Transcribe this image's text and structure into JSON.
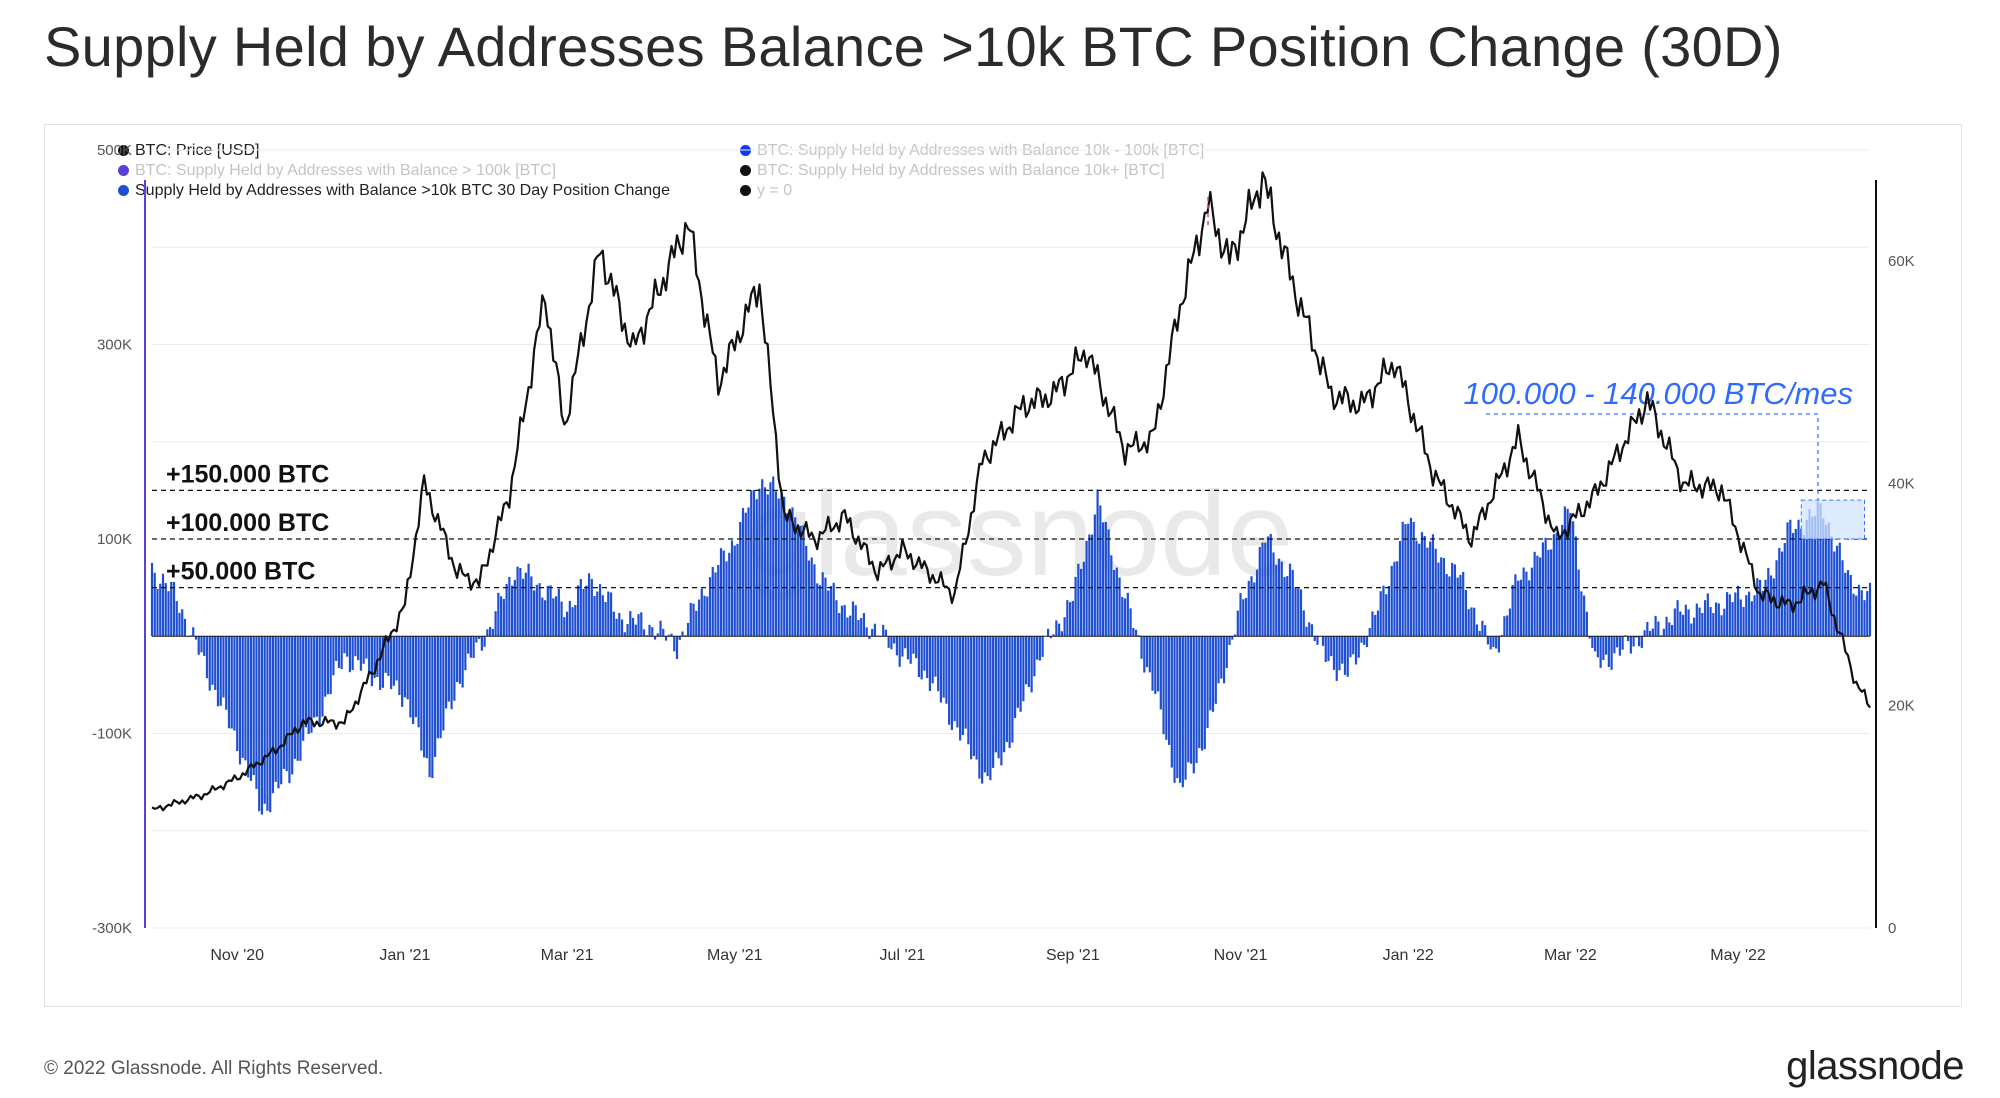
{
  "title": "Supply Held by Addresses Balance >10k BTC Position Change (30D)",
  "footer": {
    "copyright": "© 2022 Glassnode. All Rights Reserved.",
    "logo": "glassnode"
  },
  "watermark": "glassnode",
  "legend": [
    {
      "label": "BTC: Price [USD]",
      "color": "#111111",
      "faded": false
    },
    {
      "label": "BTC: Supply Held by Addresses with Balance > 100k [BTC]",
      "color": "#5b3fd6",
      "faded": true
    },
    {
      "label": "Supply Held by Addresses with Balance >10k BTC 30 Day Position Change",
      "color": "#1f4fd1",
      "faded": false
    },
    {
      "label": "BTC: Supply Held by Addresses with Balance 10k - 100k [BTC]",
      "color": "#1238f0",
      "faded": true
    },
    {
      "label": "BTC: Supply Held by Addresses with Balance 10k+ [BTC]",
      "color": "#111111",
      "faded": true
    },
    {
      "label": "y = 0",
      "color": "#111111",
      "faded": true
    }
  ],
  "chart_data": {
    "type": "bar",
    "y_left": {
      "ticks": [
        "500K",
        "300K",
        "100K",
        "-100K",
        "-300K"
      ],
      "ylim": [
        -300000,
        500000
      ]
    },
    "y_right": {
      "ticks": [
        "60K",
        "40K",
        "20K",
        "0"
      ],
      "ylim": [
        0,
        70000
      ]
    },
    "x_ticks": [
      "Nov '20",
      "Jan '21",
      "Mar '21",
      "May '21",
      "Jul '21",
      "Sep '21",
      "Nov '21",
      "Jan '22",
      "Mar '22",
      "May '22"
    ],
    "x_range": [
      "2020-10-01",
      "2022-06-18"
    ],
    "reference_lines": [
      {
        "label": "+150.000 BTC",
        "value": 150000
      },
      {
        "label": "+100.000 BTC",
        "value": 100000
      },
      {
        "label": "+50.000 BTC",
        "value": 50000
      }
    ],
    "annotation": {
      "text": "100.000 - 140.000 BTC/mes",
      "range": [
        100000,
        140000
      ],
      "x_from": "2022-05-24",
      "x_to": "2022-06-16"
    },
    "series": [
      {
        "name": "Supply Held by Addresses with Balance >10k BTC 30 Day Position Change",
        "color": "#1f4fd1",
        "points": [
          [
            "2020-10-01",
            70000
          ],
          [
            "2020-10-10",
            40000
          ],
          [
            "2020-10-20",
            -30000
          ],
          [
            "2020-11-01",
            -110000
          ],
          [
            "2020-11-10",
            -180000
          ],
          [
            "2020-11-20",
            -140000
          ],
          [
            "2020-12-01",
            -80000
          ],
          [
            "2020-12-10",
            -20000
          ],
          [
            "2020-12-20",
            -40000
          ],
          [
            "2021-01-01",
            -60000
          ],
          [
            "2021-01-10",
            -140000
          ],
          [
            "2021-01-20",
            -50000
          ],
          [
            "2021-02-01",
            10000
          ],
          [
            "2021-02-10",
            70000
          ],
          [
            "2021-02-20",
            50000
          ],
          [
            "2021-03-01",
            30000
          ],
          [
            "2021-03-10",
            60000
          ],
          [
            "2021-03-20",
            20000
          ],
          [
            "2021-04-01",
            10000
          ],
          [
            "2021-04-10",
            -10000
          ],
          [
            "2021-04-20",
            50000
          ],
          [
            "2021-05-01",
            100000
          ],
          [
            "2021-05-10",
            160000
          ],
          [
            "2021-05-20",
            140000
          ],
          [
            "2021-06-01",
            60000
          ],
          [
            "2021-06-10",
            30000
          ],
          [
            "2021-06-20",
            10000
          ],
          [
            "2021-07-01",
            -20000
          ],
          [
            "2021-07-10",
            -40000
          ],
          [
            "2021-07-20",
            -90000
          ],
          [
            "2021-08-01",
            -150000
          ],
          [
            "2021-08-10",
            -100000
          ],
          [
            "2021-08-20",
            -20000
          ],
          [
            "2021-09-01",
            40000
          ],
          [
            "2021-09-10",
            140000
          ],
          [
            "2021-09-20",
            40000
          ],
          [
            "2021-10-01",
            -60000
          ],
          [
            "2021-10-10",
            -160000
          ],
          [
            "2021-10-20",
            -100000
          ],
          [
            "2021-11-01",
            30000
          ],
          [
            "2021-11-10",
            100000
          ],
          [
            "2021-11-20",
            60000
          ],
          [
            "2021-12-01",
            -20000
          ],
          [
            "2021-12-10",
            -40000
          ],
          [
            "2021-12-20",
            20000
          ],
          [
            "2022-01-01",
            120000
          ],
          [
            "2022-01-10",
            90000
          ],
          [
            "2022-01-20",
            60000
          ],
          [
            "2022-02-01",
            -20000
          ],
          [
            "2022-02-10",
            60000
          ],
          [
            "2022-02-20",
            90000
          ],
          [
            "2022-03-01",
            130000
          ],
          [
            "2022-03-10",
            -30000
          ],
          [
            "2022-03-20",
            -15000
          ],
          [
            "2022-04-01",
            10000
          ],
          [
            "2022-04-10",
            25000
          ],
          [
            "2022-04-20",
            30000
          ],
          [
            "2022-05-01",
            40000
          ],
          [
            "2022-05-10",
            50000
          ],
          [
            "2022-05-20",
            110000
          ],
          [
            "2022-06-01",
            130000
          ],
          [
            "2022-06-10",
            60000
          ],
          [
            "2022-06-18",
            40000
          ]
        ]
      },
      {
        "name": "BTC: Price [USD]",
        "color": "#111111",
        "axis": "right",
        "points": [
          [
            "2020-10-01",
            10600
          ],
          [
            "2020-10-20",
            12000
          ],
          [
            "2020-11-01",
            13500
          ],
          [
            "2020-11-15",
            16000
          ],
          [
            "2020-11-25",
            18500
          ],
          [
            "2020-12-10",
            18500
          ],
          [
            "2020-12-20",
            23000
          ],
          [
            "2021-01-01",
            29000
          ],
          [
            "2021-01-08",
            40000
          ],
          [
            "2021-01-20",
            32000
          ],
          [
            "2021-01-28",
            31000
          ],
          [
            "2021-02-08",
            39000
          ],
          [
            "2021-02-21",
            57000
          ],
          [
            "2021-02-28",
            45000
          ],
          [
            "2021-03-13",
            61000
          ],
          [
            "2021-03-25",
            52000
          ],
          [
            "2021-04-14",
            63500
          ],
          [
            "2021-04-25",
            49000
          ],
          [
            "2021-05-10",
            58000
          ],
          [
            "2021-05-19",
            37000
          ],
          [
            "2021-05-30",
            35000
          ],
          [
            "2021-06-10",
            37000
          ],
          [
            "2021-06-22",
            32000
          ],
          [
            "2021-07-01",
            34000
          ],
          [
            "2021-07-20",
            30000
          ],
          [
            "2021-07-30",
            42000
          ],
          [
            "2021-08-14",
            47000
          ],
          [
            "2021-08-25",
            48000
          ],
          [
            "2021-09-06",
            52000
          ],
          [
            "2021-09-20",
            43000
          ],
          [
            "2021-09-30",
            44000
          ],
          [
            "2021-10-10",
            56000
          ],
          [
            "2021-10-20",
            65000
          ],
          [
            "2021-10-28",
            60000
          ],
          [
            "2021-11-09",
            67500
          ],
          [
            "2021-11-20",
            58000
          ],
          [
            "2021-12-04",
            48000
          ],
          [
            "2021-12-15",
            47000
          ],
          [
            "2021-12-27",
            51000
          ],
          [
            "2022-01-10",
            41000
          ],
          [
            "2022-01-24",
            35000
          ],
          [
            "2022-02-10",
            44000
          ],
          [
            "2022-02-24",
            35000
          ],
          [
            "2022-03-10",
            39000
          ],
          [
            "2022-03-29",
            47500
          ],
          [
            "2022-04-11",
            40000
          ],
          [
            "2022-04-25",
            39500
          ],
          [
            "2022-05-09",
            30000
          ],
          [
            "2022-05-20",
            29000
          ],
          [
            "2022-06-01",
            31000
          ],
          [
            "2022-06-13",
            22000
          ],
          [
            "2022-06-18",
            20000
          ]
        ]
      }
    ],
    "grid": true,
    "legend_position": "top-left"
  }
}
